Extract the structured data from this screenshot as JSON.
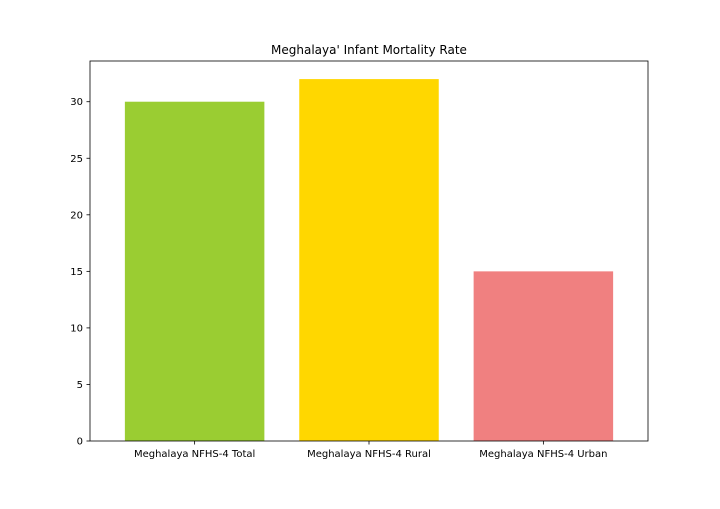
{
  "chart_data": {
    "type": "bar",
    "title": "Meghalaya' Infant Mortality Rate",
    "xlabel": "",
    "ylabel": "",
    "categories": [
      "Meghalaya NFHS-4 Total",
      "Meghalaya NFHS-4 Rural",
      "Meghalaya NFHS-4 Urban"
    ],
    "values": [
      30,
      32,
      15
    ],
    "colors": [
      "#9acd32",
      "#ffd700",
      "#f08080"
    ],
    "ylim": [
      0,
      33.6
    ],
    "yticks": [
      "0",
      "5",
      "10",
      "15",
      "20",
      "25",
      "30"
    ],
    "grid": false,
    "legend": "none"
  }
}
